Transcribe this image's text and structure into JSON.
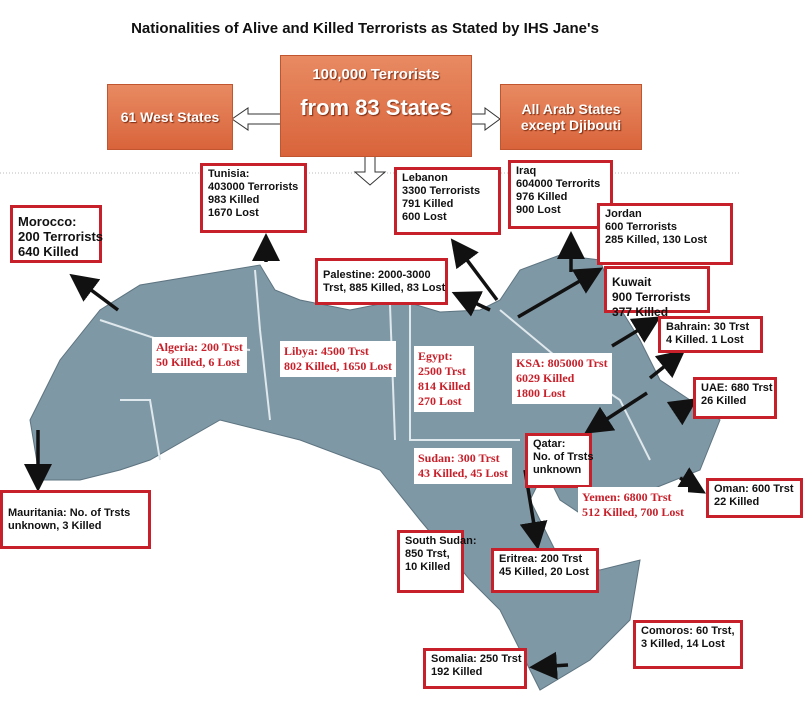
{
  "title": "Nationalities of Alive and Killed Terrorists as Stated by IHS Jane's",
  "header": {
    "top": "100,000 Terrorists",
    "center": "from 83 States",
    "left": "61 West States",
    "right": [
      "All Arab States",
      "except Djibouti"
    ]
  },
  "colors": {
    "box_border": "#c8202a",
    "header_orange": "#e07a50",
    "map_land": "#7f98a5"
  },
  "boxes": {
    "morocco": [
      "Morocco:",
      "200 Terrorists",
      "640 Killed"
    ],
    "tunisia": [
      "Tunisia:",
      "403000 Terrorists",
      "983 Killed",
      "1670 Lost"
    ],
    "lebanon": [
      "Lebanon",
      "3300 Terrorists",
      "791 Killed",
      "600 Lost"
    ],
    "iraq": [
      "Iraq",
      "604000 Terrorits",
      "976 Killed",
      "900 Lost"
    ],
    "jordan": [
      "Jordan",
      "600 Terrorists",
      "285 Killed, 130 Lost"
    ],
    "palestine": [
      "Palestine: 2000-3000",
      "Trst, 885 Killed, 83 Lost"
    ],
    "kuwait": [
      "Kuwait",
      "900 Terrorists",
      "377 Killed"
    ],
    "bahrain": [
      "Bahrain: 30 Trst",
      "4 Killed. 1 Lost"
    ],
    "uae": [
      "UAE: 680 Trst",
      "26 Killed"
    ],
    "qatar": [
      "Qatar:",
      "No. of Trsts",
      "unknown"
    ],
    "oman": [
      "Oman: 600 Trst",
      "22 Killed"
    ],
    "mauritania": [
      "Mauritania: No. of Trsts",
      "unknown, 3 Killed"
    ],
    "south_sudan": [
      "South Sudan:",
      "850 Trst,",
      "10 Killed"
    ],
    "eritrea": [
      "Eritrea: 200 Trst",
      "45 Killed, 20 Lost"
    ],
    "comoros": [
      "Comoros: 60 Trst,",
      "3 Killed, 14 Lost"
    ],
    "somalia": [
      "Somalia: 250 Trst",
      "192 Killed"
    ]
  },
  "labels": {
    "algeria": [
      "Algeria: 200 Trst",
      "50 Killed, 6 Lost"
    ],
    "libya": [
      "Libya: 4500 Trst",
      "802 Killed, 1650 Lost"
    ],
    "egypt": [
      "Egypt:",
      "2500 Trst",
      "814 Killed",
      "270 Lost"
    ],
    "ksa": [
      "KSA: 805000 Trst",
      "6029 Killed",
      "1800 Lost"
    ],
    "sudan": [
      "Sudan: 300 Trst",
      "43 Killed, 45 Lost"
    ],
    "yemen": [
      "Yemen: 6800 Trst",
      "512 Killed, 700 Lost"
    ]
  }
}
